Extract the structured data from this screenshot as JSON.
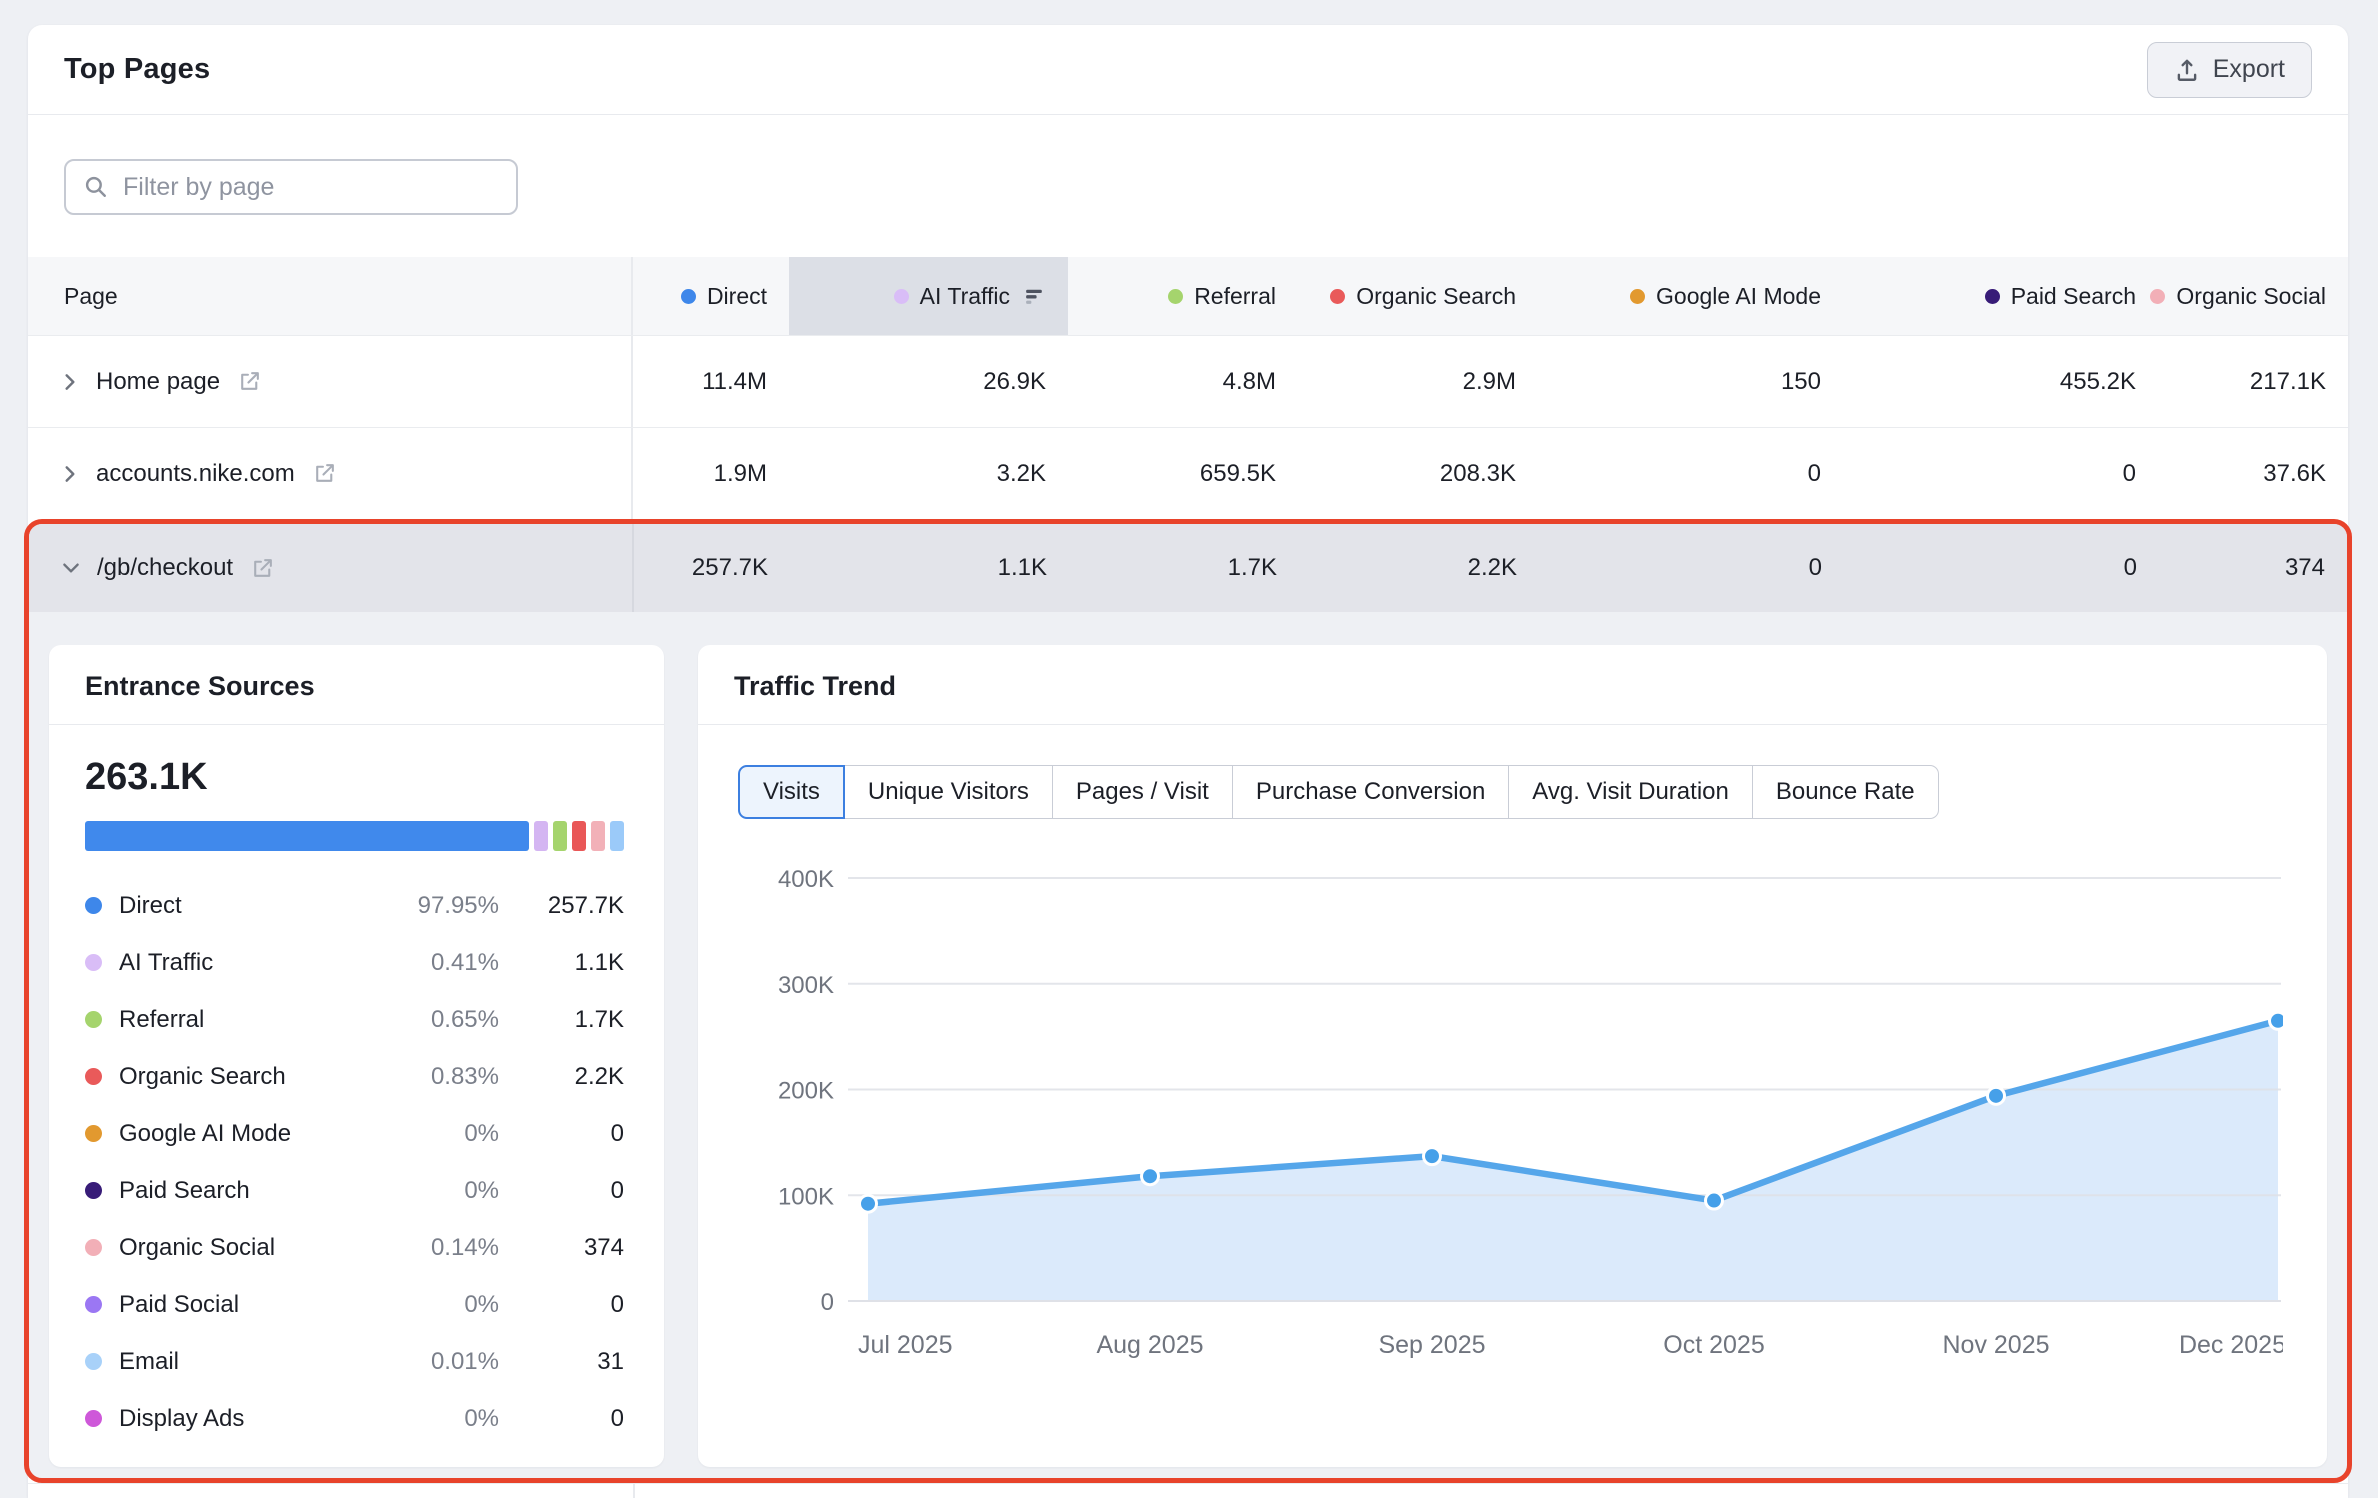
{
  "header": {
    "title": "Top Pages",
    "export_label": "Export"
  },
  "filter": {
    "placeholder": "Filter by page"
  },
  "colors": {
    "highlight_border": "#e8432b",
    "accent_blue": "#3c7fe0",
    "sorted_column_bg": "#dcdfe6"
  },
  "table": {
    "page_column_label": "Page",
    "columns": [
      {
        "label": "Direct",
        "color": "#3e87ea",
        "sorted": false,
        "highlighted": false
      },
      {
        "label": "AI Traffic",
        "color": "#d9bdf7",
        "sorted": true,
        "highlighted": true
      },
      {
        "label": "Referral",
        "color": "#a5d46d",
        "sorted": false,
        "highlighted": false
      },
      {
        "label": "Organic Search",
        "color": "#e95a5a",
        "sorted": false,
        "highlighted": false
      },
      {
        "label": "Google AI Mode",
        "color": "#e2992f",
        "sorted": false,
        "highlighted": false
      },
      {
        "label": "Paid Search",
        "color": "#381c78",
        "sorted": false,
        "highlighted": false
      },
      {
        "label": "Organic Social",
        "color": "#f2afb7",
        "sorted": false,
        "highlighted": false
      }
    ],
    "rows": [
      {
        "page": "Home page",
        "expanded": false,
        "values": [
          "11.4M",
          "26.9K",
          "4.8M",
          "2.9M",
          "150",
          "455.2K",
          "217.1K"
        ]
      },
      {
        "page": "accounts.nike.com",
        "expanded": false,
        "values": [
          "1.9M",
          "3.2K",
          "659.5K",
          "208.3K",
          "0",
          "0",
          "37.6K"
        ]
      },
      {
        "page": "/gb/checkout",
        "expanded": true,
        "values": [
          "257.7K",
          "1.1K",
          "1.7K",
          "2.2K",
          "0",
          "0",
          "374"
        ]
      }
    ]
  },
  "entrance_sources": {
    "title": "Entrance Sources",
    "total": "263.1K",
    "bar_segments": [
      {
        "name": "Direct",
        "color": "#4089ec",
        "width": 83.2
      },
      {
        "name": "AI Traffic",
        "color": "#d4b5f2",
        "width": 2.6
      },
      {
        "name": "Referral",
        "color": "#a5d46d",
        "width": 2.6
      },
      {
        "name": "Organic Search",
        "color": "#e95757",
        "width": 2.6
      },
      {
        "name": "Organic Social",
        "color": "#f2b1b8",
        "width": 2.6
      },
      {
        "name": "Email",
        "color": "#9bcaf9",
        "width": 2.6
      }
    ],
    "items": [
      {
        "label": "Direct",
        "color": "#3e87ea",
        "percent": "97.95%",
        "value": "257.7K"
      },
      {
        "label": "AI Traffic",
        "color": "#d9bdf7",
        "percent": "0.41%",
        "value": "1.1K"
      },
      {
        "label": "Referral",
        "color": "#a5d46d",
        "percent": "0.65%",
        "value": "1.7K"
      },
      {
        "label": "Organic Search",
        "color": "#e95a5a",
        "percent": "0.83%",
        "value": "2.2K"
      },
      {
        "label": "Google AI Mode",
        "color": "#e2992f",
        "percent": "0%",
        "value": "0"
      },
      {
        "label": "Paid Search",
        "color": "#381c78",
        "percent": "0%",
        "value": "0"
      },
      {
        "label": "Organic Social",
        "color": "#f2afb7",
        "percent": "0.14%",
        "value": "374"
      },
      {
        "label": "Paid Social",
        "color": "#9b77f3",
        "percent": "0%",
        "value": "0"
      },
      {
        "label": "Email",
        "color": "#a8d1f9",
        "percent": "0.01%",
        "value": "31"
      },
      {
        "label": "Display Ads",
        "color": "#ce58d9",
        "percent": "0%",
        "value": "0"
      }
    ]
  },
  "traffic_trend": {
    "title": "Traffic Trend",
    "tabs": [
      {
        "label": "Visits",
        "selected": true
      },
      {
        "label": "Unique Visitors",
        "selected": false
      },
      {
        "label": "Pages / Visit",
        "selected": false
      },
      {
        "label": "Purchase Conversion",
        "selected": false
      },
      {
        "label": "Avg. Visit Duration",
        "selected": false
      },
      {
        "label": "Bounce Rate",
        "selected": false
      }
    ]
  },
  "chart_data": {
    "type": "area",
    "title": "Traffic Trend — Visits",
    "x": [
      "Jul 2025",
      "Aug 2025",
      "Sep 2025",
      "Oct 2025",
      "Nov 2025",
      "Dec 2025"
    ],
    "series": [
      {
        "name": "Visits",
        "values": [
          92000,
          118000,
          137000,
          95000,
          194000,
          265000
        ]
      }
    ],
    "ylim": [
      0,
      400000
    ],
    "yticks": [
      {
        "value": 0,
        "label": "0"
      },
      {
        "value": 100000,
        "label": "100K"
      },
      {
        "value": 200000,
        "label": "200K"
      },
      {
        "value": 300000,
        "label": "300K"
      },
      {
        "value": 400000,
        "label": "400K"
      }
    ],
    "grid": true,
    "legend_position": "none",
    "line_color": "#55a6ea",
    "fill_color": "#dbeafb",
    "point_color": "#46a0e9"
  }
}
